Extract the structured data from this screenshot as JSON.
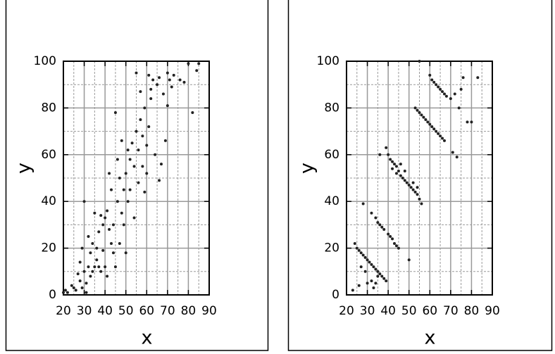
{
  "chart_data": [
    {
      "type": "scatter",
      "xlabel": "x",
      "ylabel": "y",
      "color": "#222222",
      "grid": true,
      "xlim": [
        20,
        90
      ],
      "ylim": [
        0,
        100
      ],
      "xticks": [
        20,
        30,
        40,
        50,
        60,
        70,
        80,
        90
      ],
      "yticks": [
        0,
        20,
        40,
        60,
        80,
        100
      ],
      "x": [
        20,
        21,
        22,
        24,
        25,
        26,
        27,
        28,
        28,
        29,
        29,
        30,
        30,
        31,
        31,
        32,
        32,
        33,
        33,
        34,
        34,
        35,
        35,
        36,
        36,
        37,
        37,
        38,
        38,
        39,
        39,
        40,
        40,
        41,
        41,
        42,
        42,
        43,
        43,
        44,
        44,
        45,
        45,
        46,
        46,
        47,
        47,
        48,
        48,
        49,
        49,
        50,
        50,
        51,
        51,
        52,
        52,
        53,
        54,
        54,
        55,
        55,
        56,
        56,
        57,
        57,
        58,
        58,
        59,
        59,
        60,
        60,
        61,
        61,
        62,
        62,
        63,
        64,
        65,
        66,
        66,
        67,
        68,
        69,
        70,
        70,
        71,
        72,
        73,
        76,
        78,
        80,
        82,
        84,
        85
      ],
      "y": [
        1,
        2,
        1,
        4,
        3,
        2,
        9,
        6,
        14,
        20,
        3,
        10,
        40,
        1,
        5,
        12,
        25,
        18,
        8,
        22,
        10,
        35,
        12,
        20,
        15,
        27,
        12,
        34,
        10,
        30,
        19,
        33,
        12,
        36,
        8,
        28,
        52,
        22,
        45,
        30,
        18,
        78,
        12,
        40,
        58,
        50,
        22,
        35,
        66,
        45,
        30,
        52,
        18,
        62,
        40,
        58,
        45,
        65,
        33,
        55,
        95,
        70,
        62,
        48,
        87,
        75,
        55,
        68,
        44,
        80,
        64,
        52,
        94,
        72,
        84,
        88,
        92,
        60,
        90,
        49,
        93,
        56,
        86,
        66,
        81,
        95,
        92,
        89,
        94,
        92,
        91,
        99,
        78,
        96,
        99
      ]
    },
    {
      "type": "scatter",
      "xlabel": "x",
      "ylabel": "y",
      "color": "#222222",
      "grid": true,
      "xlim": [
        20,
        90
      ],
      "ylim": [
        0,
        100
      ],
      "xticks": [
        20,
        30,
        40,
        50,
        60,
        70,
        80,
        90
      ],
      "yticks": [
        0,
        20,
        40,
        60,
        80,
        100
      ],
      "x": [
        24,
        25,
        26,
        27,
        28,
        29,
        30,
        31,
        32,
        33,
        34,
        35,
        36,
        37,
        38,
        39,
        27,
        29,
        30,
        32,
        34,
        33,
        35,
        23,
        26,
        28,
        32,
        34,
        35,
        36,
        37,
        38,
        40,
        41,
        42,
        43,
        44,
        45,
        50,
        39,
        40,
        41,
        42,
        43,
        44,
        45,
        46,
        47,
        48,
        49,
        50,
        51,
        52,
        53,
        54,
        55,
        56,
        42,
        44,
        46,
        48,
        52,
        54,
        36,
        53,
        54,
        55,
        56,
        57,
        58,
        59,
        60,
        61,
        62,
        63,
        64,
        65,
        66,
        67,
        55,
        60,
        61,
        62,
        63,
        64,
        65,
        66,
        67,
        68,
        70,
        72,
        74,
        75,
        76,
        80,
        83,
        73,
        71,
        78
      ],
      "y": [
        22,
        20,
        19,
        18,
        17,
        16,
        15,
        14,
        13,
        12,
        11,
        10,
        9,
        8,
        7,
        6,
        12,
        10,
        5,
        6,
        5,
        3,
        8,
        2,
        4,
        39,
        35,
        33,
        31,
        30,
        29,
        28,
        26,
        25,
        24,
        22,
        21,
        20,
        15,
        63,
        60,
        58,
        57,
        56,
        55,
        53,
        51,
        50,
        49,
        48,
        47,
        46,
        45,
        44,
        43,
        41,
        39,
        54,
        52,
        56,
        53,
        48,
        46,
        60,
        80,
        79,
        78,
        77,
        76,
        75,
        74,
        73,
        72,
        71,
        70,
        69,
        68,
        67,
        66,
        100,
        94,
        92,
        91,
        90,
        89,
        88,
        87,
        86,
        85,
        84,
        86,
        80,
        88,
        93,
        74,
        93,
        59,
        61,
        74
      ]
    }
  ]
}
